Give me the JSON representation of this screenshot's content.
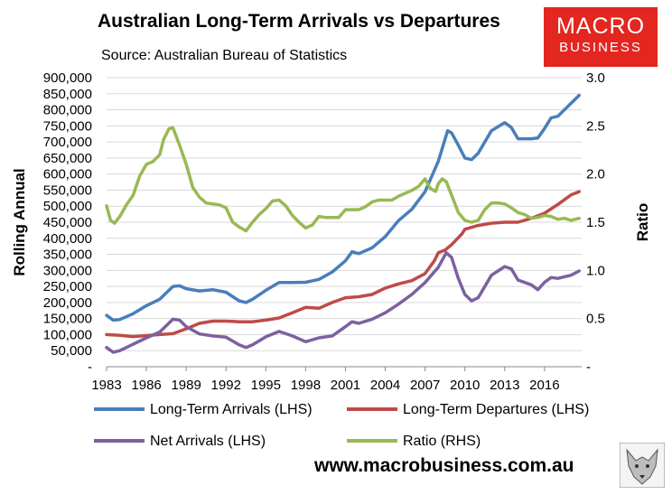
{
  "header": {
    "title": "Australian Long-Term Arrivals vs Departures",
    "subtitle": "Source: Australian Bureau of Statistics"
  },
  "logo": {
    "line1": "MACRO",
    "line2": "BUSINESS"
  },
  "footer": {
    "url": "www.macrobusiness.com.au"
  },
  "colors": {
    "arrivals": "#4a7ebb",
    "departures": "#be4b48",
    "net": "#7d60a0",
    "ratio": "#98b954",
    "grid": "#d9d9d9",
    "logo": "#e3261f"
  },
  "chart_data": {
    "type": "line",
    "title": "Australian Long-Term Arrivals vs Departures",
    "ylabel": "Rolling Annual",
    "y2label": "Ratio",
    "xlim": [
      1983,
      2018.8
    ],
    "ylim": [
      0,
      900000
    ],
    "y2lim": [
      0,
      3.0
    ],
    "grid": "horizontal",
    "legend": "bottom",
    "x_ticks": [
      "1983",
      "1986",
      "1989",
      "1992",
      "1995",
      "1998",
      "2001",
      "2004",
      "2007",
      "2010",
      "2013",
      "2016"
    ],
    "y_ticks": [
      "-",
      "50,000",
      "100,000",
      "150,000",
      "200,000",
      "250,000",
      "300,000",
      "350,000",
      "400,000",
      "450,000",
      "500,000",
      "550,000",
      "600,000",
      "650,000",
      "700,000",
      "750,000",
      "800,000",
      "850,000",
      "900,000"
    ],
    "y2_ticks": [
      "-",
      "0.5",
      "1.0",
      "1.5",
      "2.0",
      "2.5",
      "3.0"
    ],
    "series": [
      {
        "name": "Long-Term Arrivals (LHS)",
        "axis": "left",
        "points": [
          [
            1983,
            160000
          ],
          [
            1983.5,
            145000
          ],
          [
            1984,
            147000
          ],
          [
            1985,
            165000
          ],
          [
            1986,
            190000
          ],
          [
            1987,
            210000
          ],
          [
            1988,
            250000
          ],
          [
            1988.5,
            252000
          ],
          [
            1989,
            243000
          ],
          [
            1990,
            236000
          ],
          [
            1991,
            240000
          ],
          [
            1992,
            232000
          ],
          [
            1993,
            205000
          ],
          [
            1993.5,
            200000
          ],
          [
            1994,
            210000
          ],
          [
            1995,
            238000
          ],
          [
            1996,
            262000
          ],
          [
            1997,
            262000
          ],
          [
            1998,
            263000
          ],
          [
            1999,
            272000
          ],
          [
            2000,
            295000
          ],
          [
            2001,
            330000
          ],
          [
            2001.5,
            358000
          ],
          [
            2002,
            352000
          ],
          [
            2003,
            370000
          ],
          [
            2004,
            405000
          ],
          [
            2005,
            455000
          ],
          [
            2006,
            490000
          ],
          [
            2007,
            545000
          ],
          [
            2008,
            640000
          ],
          [
            2008.7,
            735000
          ],
          [
            2009,
            728000
          ],
          [
            2009.5,
            690000
          ],
          [
            2010,
            650000
          ],
          [
            2010.5,
            645000
          ],
          [
            2011,
            665000
          ],
          [
            2012,
            735000
          ],
          [
            2013,
            760000
          ],
          [
            2013.5,
            745000
          ],
          [
            2014,
            710000
          ],
          [
            2015,
            710000
          ],
          [
            2015.5,
            712000
          ],
          [
            2016,
            742000
          ],
          [
            2016.5,
            775000
          ],
          [
            2017,
            780000
          ],
          [
            2018,
            820000
          ],
          [
            2018.6,
            845000
          ]
        ]
      },
      {
        "name": "Long-Term Departures (LHS)",
        "axis": "left",
        "points": [
          [
            1983,
            100000
          ],
          [
            1984,
            98000
          ],
          [
            1985,
            94000
          ],
          [
            1986,
            97000
          ],
          [
            1987,
            100000
          ],
          [
            1988,
            103000
          ],
          [
            1989,
            118000
          ],
          [
            1990,
            135000
          ],
          [
            1991,
            142000
          ],
          [
            1992,
            142000
          ],
          [
            1993,
            140000
          ],
          [
            1994,
            140000
          ],
          [
            1995,
            145000
          ],
          [
            1996,
            152000
          ],
          [
            1997,
            168000
          ],
          [
            1998,
            185000
          ],
          [
            1999,
            182000
          ],
          [
            2000,
            200000
          ],
          [
            2001,
            215000
          ],
          [
            2002,
            218000
          ],
          [
            2003,
            225000
          ],
          [
            2004,
            245000
          ],
          [
            2005,
            258000
          ],
          [
            2006,
            268000
          ],
          [
            2007,
            290000
          ],
          [
            2007.7,
            330000
          ],
          [
            2008,
            355000
          ],
          [
            2008.5,
            363000
          ],
          [
            2009,
            380000
          ],
          [
            2009.8,
            415000
          ],
          [
            2010,
            428000
          ],
          [
            2011,
            440000
          ],
          [
            2012,
            447000
          ],
          [
            2013,
            450000
          ],
          [
            2014,
            450000
          ],
          [
            2015,
            462000
          ],
          [
            2016,
            478000
          ],
          [
            2017,
            505000
          ],
          [
            2018,
            535000
          ],
          [
            2018.6,
            545000
          ]
        ]
      },
      {
        "name": "Net Arrivals (LHS)",
        "axis": "left",
        "points": [
          [
            1983,
            60000
          ],
          [
            1983.5,
            45000
          ],
          [
            1984,
            50000
          ],
          [
            1985,
            70000
          ],
          [
            1986,
            90000
          ],
          [
            1987,
            108000
          ],
          [
            1988,
            148000
          ],
          [
            1988.5,
            145000
          ],
          [
            1989,
            125000
          ],
          [
            1990,
            102000
          ],
          [
            1991,
            96000
          ],
          [
            1992,
            92000
          ],
          [
            1993,
            68000
          ],
          [
            1993.5,
            60000
          ],
          [
            1994,
            68000
          ],
          [
            1995,
            93000
          ],
          [
            1996,
            110000
          ],
          [
            1997,
            96000
          ],
          [
            1998,
            78000
          ],
          [
            1999,
            90000
          ],
          [
            2000,
            96000
          ],
          [
            2001,
            125000
          ],
          [
            2001.5,
            140000
          ],
          [
            2002,
            135000
          ],
          [
            2003,
            148000
          ],
          [
            2004,
            168000
          ],
          [
            2005,
            195000
          ],
          [
            2006,
            225000
          ],
          [
            2007,
            262000
          ],
          [
            2008,
            310000
          ],
          [
            2008.6,
            355000
          ],
          [
            2009,
            340000
          ],
          [
            2009.5,
            275000
          ],
          [
            2010,
            225000
          ],
          [
            2010.5,
            205000
          ],
          [
            2011,
            215000
          ],
          [
            2012,
            285000
          ],
          [
            2013,
            312000
          ],
          [
            2013.5,
            305000
          ],
          [
            2014,
            270000
          ],
          [
            2015,
            255000
          ],
          [
            2015.5,
            240000
          ],
          [
            2016,
            263000
          ],
          [
            2016.5,
            278000
          ],
          [
            2017,
            275000
          ],
          [
            2018,
            285000
          ],
          [
            2018.6,
            298000
          ]
        ]
      },
      {
        "name": "Ratio (RHS)",
        "axis": "right",
        "points": [
          [
            1983,
            1.67
          ],
          [
            1983.3,
            1.52
          ],
          [
            1983.6,
            1.49
          ],
          [
            1984,
            1.56
          ],
          [
            1984.5,
            1.68
          ],
          [
            1985,
            1.78
          ],
          [
            1985.5,
            1.98
          ],
          [
            1986,
            2.1
          ],
          [
            1986.5,
            2.13
          ],
          [
            1987,
            2.2
          ],
          [
            1987.3,
            2.36
          ],
          [
            1987.7,
            2.47
          ],
          [
            1988,
            2.48
          ],
          [
            1988.5,
            2.3
          ],
          [
            1989,
            2.1
          ],
          [
            1989.5,
            1.86
          ],
          [
            1990,
            1.76
          ],
          [
            1990.5,
            1.7
          ],
          [
            1991,
            1.69
          ],
          [
            1991.5,
            1.68
          ],
          [
            1992,
            1.65
          ],
          [
            1992.5,
            1.5
          ],
          [
            1993,
            1.45
          ],
          [
            1993.5,
            1.41
          ],
          [
            1994,
            1.5
          ],
          [
            1994.5,
            1.58
          ],
          [
            1995,
            1.64
          ],
          [
            1995.5,
            1.72
          ],
          [
            1996,
            1.73
          ],
          [
            1996.5,
            1.67
          ],
          [
            1997,
            1.57
          ],
          [
            1997.5,
            1.5
          ],
          [
            1998,
            1.44
          ],
          [
            1998.5,
            1.47
          ],
          [
            1999,
            1.56
          ],
          [
            1999.5,
            1.55
          ],
          [
            2000,
            1.55
          ],
          [
            2000.5,
            1.55
          ],
          [
            2001,
            1.63
          ],
          [
            2001.5,
            1.63
          ],
          [
            2002,
            1.63
          ],
          [
            2002.5,
            1.66
          ],
          [
            2003,
            1.71
          ],
          [
            2003.5,
            1.73
          ],
          [
            2004,
            1.73
          ],
          [
            2004.5,
            1.73
          ],
          [
            2005,
            1.77
          ],
          [
            2005.5,
            1.8
          ],
          [
            2006,
            1.83
          ],
          [
            2006.5,
            1.87
          ],
          [
            2007,
            1.95
          ],
          [
            2007.4,
            1.85
          ],
          [
            2007.8,
            1.82
          ],
          [
            2008,
            1.9
          ],
          [
            2008.3,
            1.95
          ],
          [
            2008.6,
            1.92
          ],
          [
            2009,
            1.78
          ],
          [
            2009.5,
            1.6
          ],
          [
            2010,
            1.52
          ],
          [
            2010.5,
            1.5
          ],
          [
            2011,
            1.52
          ],
          [
            2011.5,
            1.63
          ],
          [
            2012,
            1.7
          ],
          [
            2012.5,
            1.7
          ],
          [
            2013,
            1.69
          ],
          [
            2013.5,
            1.65
          ],
          [
            2014,
            1.6
          ],
          [
            2014.5,
            1.58
          ],
          [
            2015,
            1.54
          ],
          [
            2015.5,
            1.55
          ],
          [
            2016,
            1.57
          ],
          [
            2016.5,
            1.56
          ],
          [
            2017,
            1.53
          ],
          [
            2017.5,
            1.54
          ],
          [
            2018,
            1.52
          ],
          [
            2018.6,
            1.54
          ]
        ]
      }
    ]
  }
}
